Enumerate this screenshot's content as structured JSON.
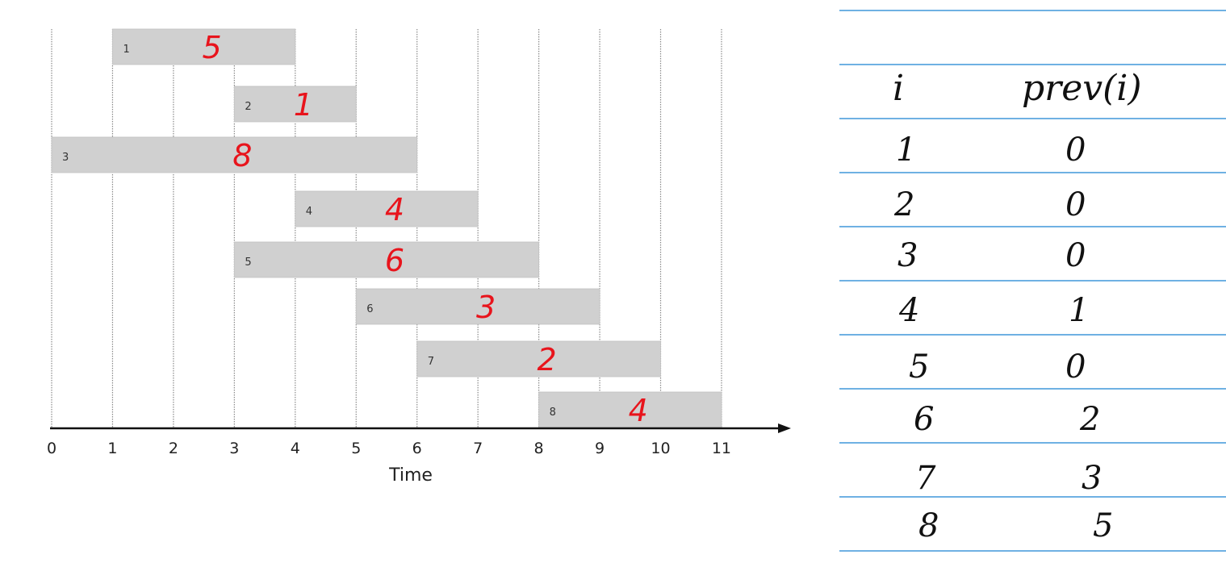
{
  "chart_data": {
    "type": "gantt",
    "xlabel": "Time",
    "x_ticks": [
      "0",
      "1",
      "2",
      "3",
      "4",
      "5",
      "6",
      "7",
      "8",
      "9",
      "10",
      "11"
    ],
    "xlim": [
      0,
      11
    ],
    "grid": true,
    "jobs": [
      {
        "id": "1",
        "start": 1,
        "end": 4,
        "weight": "5"
      },
      {
        "id": "2",
        "start": 3,
        "end": 5,
        "weight": "1"
      },
      {
        "id": "3",
        "start": 0,
        "end": 6,
        "weight": "8"
      },
      {
        "id": "4",
        "start": 4,
        "end": 7,
        "weight": "4"
      },
      {
        "id": "5",
        "start": 3,
        "end": 8,
        "weight": "6"
      },
      {
        "id": "6",
        "start": 5,
        "end": 9,
        "weight": "3"
      },
      {
        "id": "7",
        "start": 6,
        "end": 10,
        "weight": "2"
      },
      {
        "id": "8",
        "start": 8,
        "end": 11,
        "weight": "4"
      }
    ],
    "colors": {
      "bar": "#d0d0d0",
      "grid": "#8a8a8a",
      "weight": "#e8141c",
      "axis": "#111111"
    }
  },
  "notes": {
    "header_i": "i",
    "header_prev": "prev(i)",
    "rows": [
      {
        "i": "1",
        "prev": "0"
      },
      {
        "i": "2",
        "prev": "0"
      },
      {
        "i": "3",
        "prev": "0"
      },
      {
        "i": "4",
        "prev": "1"
      },
      {
        "i": "5",
        "prev": "0"
      },
      {
        "i": "6",
        "prev": "2"
      },
      {
        "i": "7",
        "prev": "3"
      },
      {
        "i": "8",
        "prev": "5"
      }
    ],
    "rule_color": "#6fb1e3"
  }
}
